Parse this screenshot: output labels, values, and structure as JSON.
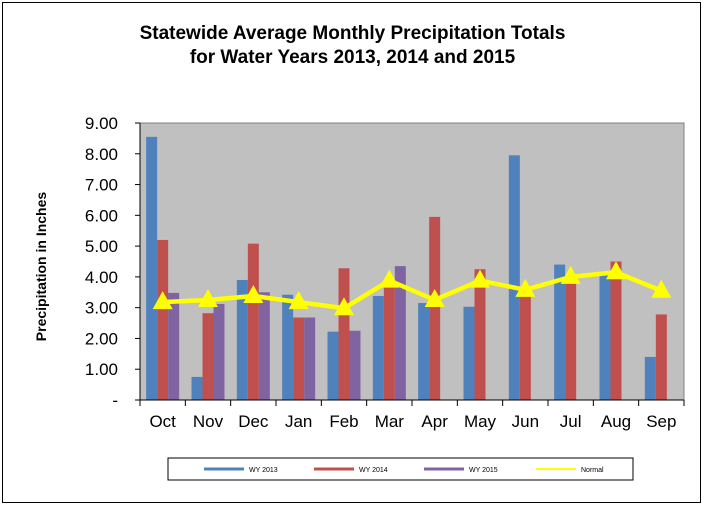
{
  "chart_data": {
    "type": "bar",
    "title_line1": "Statewide Average Monthly Precipitation Totals",
    "title_line2": "for Water Years 2013, 2014 and 2015",
    "ylabel": "Precipitation in Inches",
    "xlabel": "",
    "ylim": [
      0,
      9
    ],
    "yticks": [
      0,
      1,
      2,
      3,
      4,
      5,
      6,
      7,
      8,
      9
    ],
    "ytick_labels": [
      "-",
      "1.00",
      "2.00",
      "3.00",
      "4.00",
      "5.00",
      "6.00",
      "7.00",
      "8.00",
      "9.00"
    ],
    "categories": [
      "Oct",
      "Nov",
      "Dec",
      "Jan",
      "Feb",
      "Mar",
      "Apr",
      "May",
      "Jun",
      "Jul",
      "Aug",
      "Sep"
    ],
    "series": [
      {
        "name": "WY 2013",
        "type": "bar",
        "color": "#4F81BD",
        "values": [
          8.55,
          0.75,
          3.9,
          3.42,
          2.22,
          3.38,
          3.15,
          3.03,
          7.95,
          4.4,
          4.05,
          1.4
        ]
      },
      {
        "name": "WY 2014",
        "type": "bar",
        "color": "#C0504D",
        "values": [
          5.2,
          2.82,
          5.08,
          2.68,
          4.28,
          3.82,
          5.95,
          4.25,
          3.58,
          3.95,
          4.5,
          2.78
        ]
      },
      {
        "name": "WY 2015",
        "type": "bar",
        "color": "#8064A2",
        "values": [
          3.48,
          3.12,
          3.5,
          2.68,
          2.25,
          4.35,
          null,
          null,
          null,
          null,
          null,
          null
        ]
      },
      {
        "name": "Normal",
        "type": "line",
        "color": "#FFFF00",
        "values": [
          3.18,
          3.25,
          3.38,
          3.18,
          2.98,
          3.88,
          3.25,
          3.88,
          3.58,
          4.0,
          4.15,
          3.55
        ]
      }
    ],
    "grid": false,
    "plot_background": "#C0C0C0",
    "legend_position": "bottom"
  }
}
